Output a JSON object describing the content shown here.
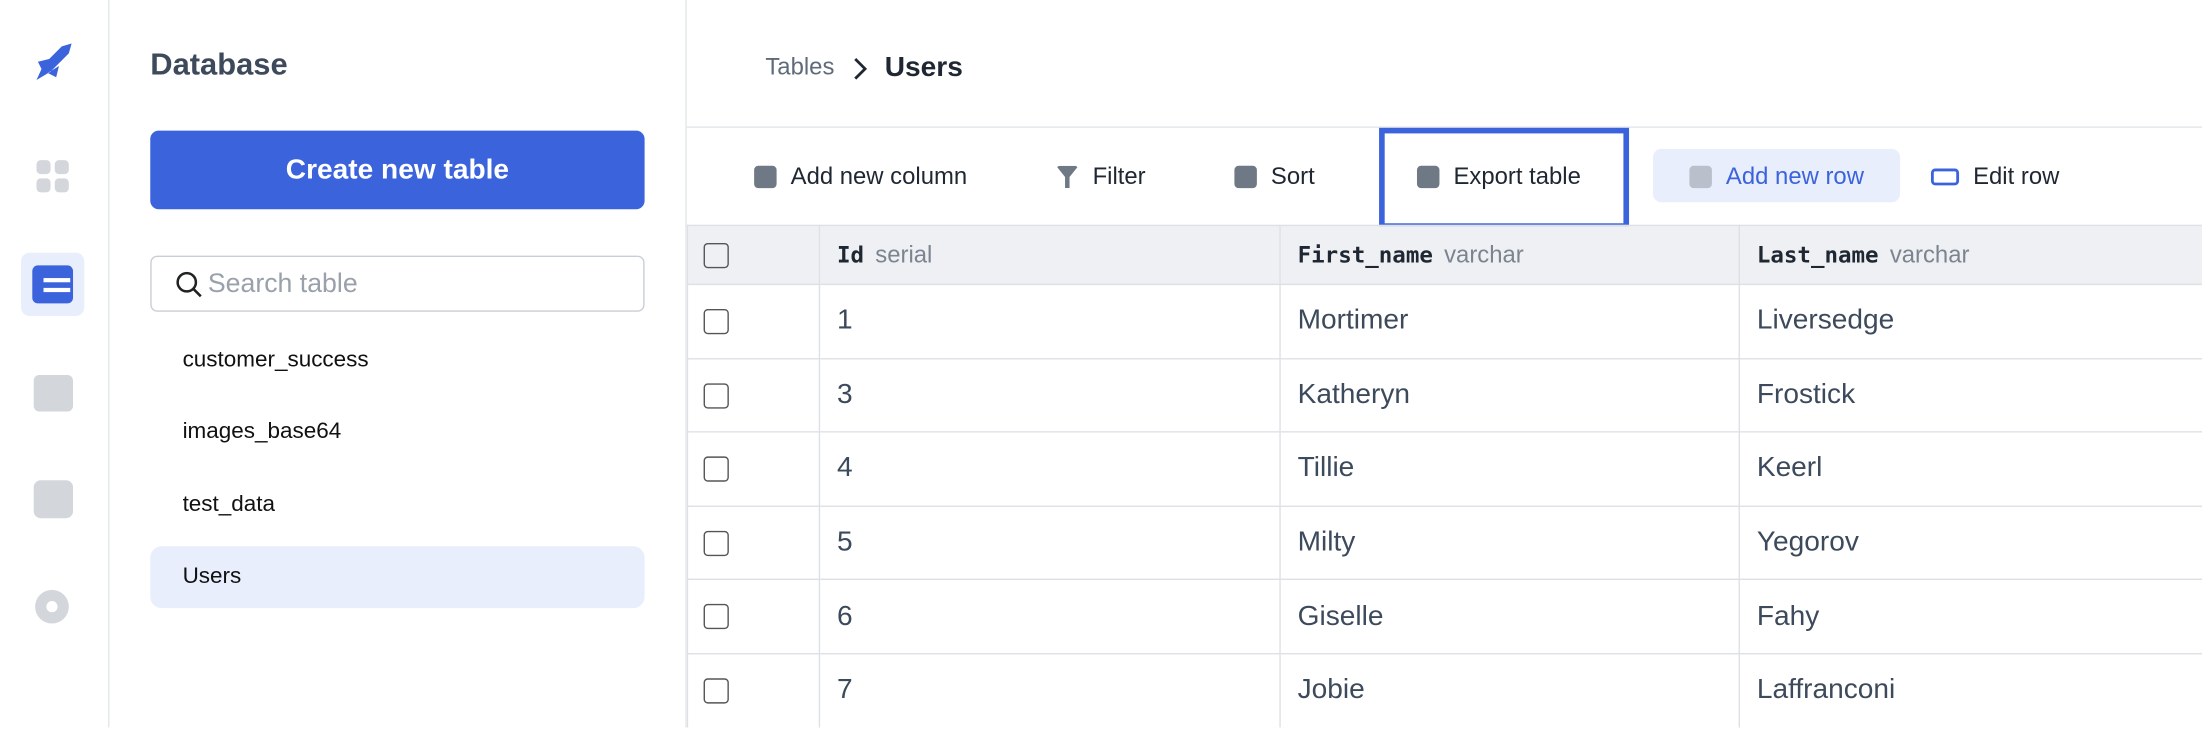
{
  "sidebar": {
    "title": "Database",
    "create_button": "Create new table",
    "search_placeholder": "Search table",
    "tables": [
      "customer_success",
      "images_base64",
      "test_data",
      "Users"
    ],
    "selected_table": 3
  },
  "breadcrumb": {
    "parent": "Tables",
    "current": "Users"
  },
  "toolbar": [
    "Add new column",
    "Filter",
    "Sort",
    "Export table",
    "Add new row",
    "Edit row"
  ],
  "table": {
    "columns": [
      {
        "name": "Id",
        "type": "serial"
      },
      {
        "name": "First_name",
        "type": "varchar"
      },
      {
        "name": "Last_name",
        "type": "varchar"
      }
    ],
    "rows": [
      [
        "1",
        "Mortimer",
        "Liversedge"
      ],
      [
        "3",
        "Katheryn",
        "Frostick"
      ],
      [
        "4",
        "Tillie",
        "Keerl"
      ],
      [
        "5",
        "Milty",
        "Yegorov"
      ],
      [
        "6",
        "Giselle",
        "Fahy"
      ],
      [
        "7",
        "Jobie",
        "Laffranconi"
      ]
    ]
  }
}
